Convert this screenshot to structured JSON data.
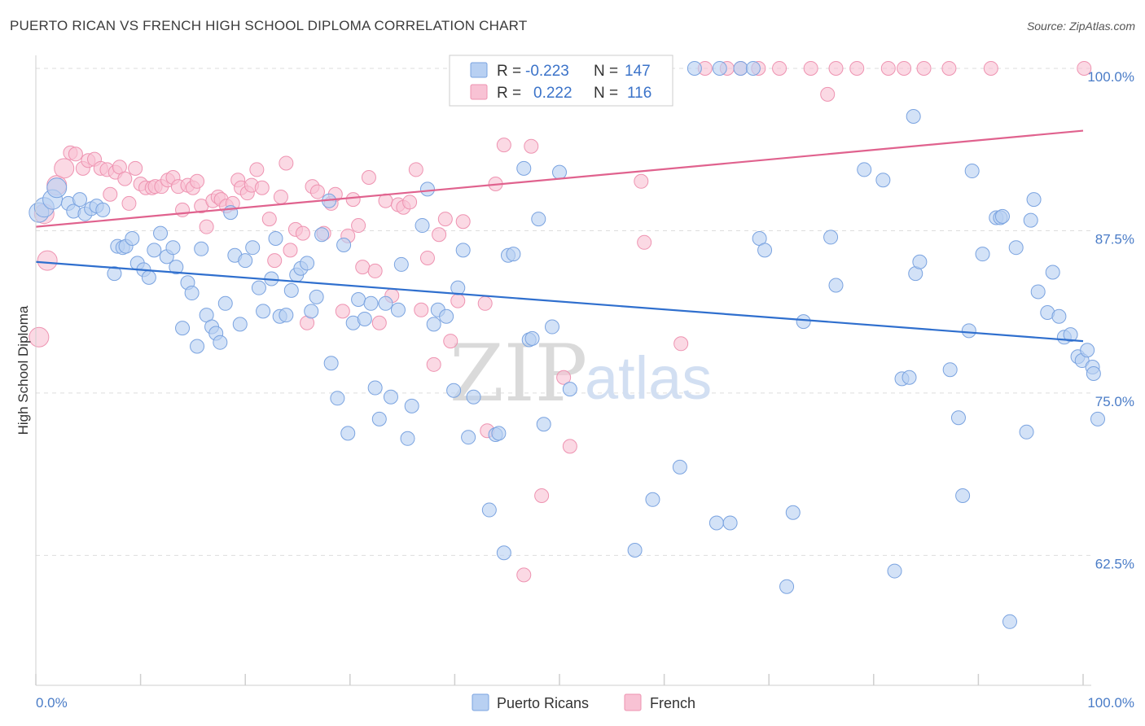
{
  "title": "PUERTO RICAN VS FRENCH HIGH SCHOOL DIPLOMA CORRELATION CHART",
  "source": "Source: ZipAtlas.com",
  "watermark": {
    "part1": "ZIP",
    "part2": "atlas"
  },
  "colors": {
    "series1_fill": "#b8d0f2",
    "series1_stroke": "#7aa3e0",
    "series1_line": "#2f6fce",
    "series2_fill": "#f8c2d4",
    "series2_stroke": "#ee93b1",
    "series2_line": "#e0628e",
    "tick_label": "#4a7cc7",
    "grid": "#dddddd"
  },
  "chart_data": {
    "type": "scatter",
    "title": "PUERTO RICAN VS FRENCH HIGH SCHOOL DIPLOMA CORRELATION CHART",
    "xlabel": "",
    "ylabel": "High School Diploma",
    "xlim": [
      0,
      100
    ],
    "ylim": [
      52.5,
      101
    ],
    "x_tick_labels": [
      "0.0%",
      "100.0%"
    ],
    "y_ticks": [
      62.5,
      75.0,
      87.5,
      100.0
    ],
    "y_tick_labels": [
      "62.5%",
      "75.0%",
      "87.5%",
      "100.0%"
    ],
    "grid": "horizontal dashed",
    "legend_position": "top-center",
    "legend": [
      {
        "r_label": "R =",
        "r_value": "-0.223",
        "n_label": "N =",
        "n_value": "147"
      },
      {
        "r_label": "R =",
        "r_value": "0.222",
        "n_label": "N =",
        "n_value": "116"
      }
    ],
    "series": [
      {
        "name": "Puerto Ricans",
        "trend": {
          "x": [
            0,
            100
          ],
          "y": [
            85.1,
            79.0
          ]
        },
        "points": [
          [
            0.3,
            88.9
          ],
          [
            0.8,
            89.3
          ],
          [
            1.6,
            89.9
          ],
          [
            2.0,
            90.8
          ],
          [
            3.1,
            89.6
          ],
          [
            3.6,
            89.0
          ],
          [
            4.2,
            89.9
          ],
          [
            4.7,
            88.8
          ],
          [
            5.3,
            89.2
          ],
          [
            5.8,
            89.4
          ],
          [
            6.4,
            89.1
          ],
          [
            7.5,
            84.2
          ],
          [
            7.8,
            86.3
          ],
          [
            8.3,
            86.2
          ],
          [
            8.6,
            86.3
          ],
          [
            9.2,
            86.9
          ],
          [
            9.7,
            85.0
          ],
          [
            10.3,
            84.5
          ],
          [
            10.8,
            83.9
          ],
          [
            11.3,
            86.0
          ],
          [
            11.9,
            87.3
          ],
          [
            12.5,
            85.5
          ],
          [
            13.1,
            86.2
          ],
          [
            13.4,
            84.7
          ],
          [
            14.0,
            80.0
          ],
          [
            14.5,
            83.5
          ],
          [
            14.9,
            82.7
          ],
          [
            15.4,
            78.6
          ],
          [
            15.8,
            86.1
          ],
          [
            16.3,
            81.0
          ],
          [
            16.8,
            80.1
          ],
          [
            17.2,
            79.6
          ],
          [
            17.6,
            78.9
          ],
          [
            18.1,
            81.9
          ],
          [
            18.6,
            88.9
          ],
          [
            19.0,
            85.6
          ],
          [
            19.5,
            80.3
          ],
          [
            20.0,
            85.2
          ],
          [
            20.7,
            86.2
          ],
          [
            21.3,
            83.1
          ],
          [
            21.7,
            81.3
          ],
          [
            22.5,
            83.8
          ],
          [
            22.9,
            86.9
          ],
          [
            23.3,
            80.9
          ],
          [
            23.9,
            81.0
          ],
          [
            24.4,
            82.9
          ],
          [
            24.9,
            84.1
          ],
          [
            25.3,
            84.6
          ],
          [
            25.9,
            85.0
          ],
          [
            26.3,
            81.3
          ],
          [
            26.8,
            82.4
          ],
          [
            27.3,
            87.2
          ],
          [
            28.0,
            89.8
          ],
          [
            28.2,
            77.3
          ],
          [
            28.8,
            74.6
          ],
          [
            29.4,
            86.4
          ],
          [
            29.8,
            71.9
          ],
          [
            30.3,
            80.4
          ],
          [
            30.8,
            82.2
          ],
          [
            31.4,
            80.7
          ],
          [
            32.0,
            81.9
          ],
          [
            32.4,
            75.4
          ],
          [
            32.8,
            73.0
          ],
          [
            33.4,
            81.9
          ],
          [
            33.9,
            74.7
          ],
          [
            34.6,
            81.4
          ],
          [
            34.9,
            84.9
          ],
          [
            35.5,
            71.5
          ],
          [
            35.9,
            74.0
          ],
          [
            36.9,
            87.9
          ],
          [
            37.4,
            90.7
          ],
          [
            38.0,
            80.3
          ],
          [
            38.4,
            81.4
          ],
          [
            39.2,
            80.9
          ],
          [
            39.9,
            75.2
          ],
          [
            40.3,
            83.1
          ],
          [
            40.8,
            86.0
          ],
          [
            41.3,
            71.6
          ],
          [
            41.8,
            74.7
          ],
          [
            43.3,
            66.0
          ],
          [
            43.9,
            71.8
          ],
          [
            44.2,
            71.9
          ],
          [
            44.7,
            62.7
          ],
          [
            45.1,
            85.6
          ],
          [
            45.6,
            85.7
          ],
          [
            46.6,
            92.3
          ],
          [
            47.1,
            79.1
          ],
          [
            47.4,
            79.2
          ],
          [
            48.0,
            88.4
          ],
          [
            48.5,
            72.6
          ],
          [
            49.3,
            80.1
          ],
          [
            50.0,
            92.0
          ],
          [
            51.0,
            75.3
          ],
          [
            55.2,
            100.0
          ],
          [
            55.9,
            100.0
          ],
          [
            56.4,
            100.0
          ],
          [
            57.2,
            62.9
          ],
          [
            58.9,
            66.8
          ],
          [
            61.5,
            69.3
          ],
          [
            62.9,
            100.0
          ],
          [
            65.0,
            65.0
          ],
          [
            65.3,
            100.0
          ],
          [
            66.3,
            65.0
          ],
          [
            67.3,
            100.0
          ],
          [
            68.5,
            100.0
          ],
          [
            69.1,
            86.9
          ],
          [
            69.6,
            86.0
          ],
          [
            71.7,
            60.1
          ],
          [
            72.3,
            65.8
          ],
          [
            73.3,
            80.5
          ],
          [
            75.9,
            87.0
          ],
          [
            76.4,
            83.3
          ],
          [
            79.1,
            92.2
          ],
          [
            80.9,
            91.4
          ],
          [
            82.0,
            61.3
          ],
          [
            82.7,
            76.1
          ],
          [
            83.4,
            76.2
          ],
          [
            83.8,
            96.3
          ],
          [
            84.0,
            84.2
          ],
          [
            84.4,
            85.1
          ],
          [
            87.3,
            76.8
          ],
          [
            88.1,
            73.1
          ],
          [
            88.5,
            67.1
          ],
          [
            89.1,
            79.8
          ],
          [
            89.4,
            92.1
          ],
          [
            90.4,
            85.7
          ],
          [
            91.7,
            88.5
          ],
          [
            92.1,
            88.5
          ],
          [
            92.3,
            88.6
          ],
          [
            93.0,
            57.4
          ],
          [
            93.6,
            86.2
          ],
          [
            94.6,
            72.0
          ],
          [
            95.0,
            88.3
          ],
          [
            95.3,
            89.9
          ],
          [
            95.7,
            82.8
          ],
          [
            96.6,
            81.2
          ],
          [
            97.1,
            84.3
          ],
          [
            97.7,
            80.9
          ],
          [
            98.2,
            79.3
          ],
          [
            98.8,
            79.5
          ],
          [
            99.5,
            77.8
          ],
          [
            99.9,
            77.5
          ],
          [
            100.4,
            78.3
          ],
          [
            100.9,
            77.0
          ],
          [
            101.0,
            76.5
          ],
          [
            101.4,
            73.0
          ]
        ]
      },
      {
        "name": "French",
        "trend": {
          "x": [
            0,
            100
          ],
          "y": [
            87.8,
            95.2
          ]
        },
        "points": [
          [
            0.3,
            79.3
          ],
          [
            0.8,
            88.8
          ],
          [
            1.1,
            85.2
          ],
          [
            2.0,
            91.0
          ],
          [
            2.7,
            92.3
          ],
          [
            3.3,
            93.5
          ],
          [
            3.8,
            93.4
          ],
          [
            4.5,
            92.3
          ],
          [
            5.0,
            92.9
          ],
          [
            5.6,
            93.0
          ],
          [
            6.2,
            92.3
          ],
          [
            6.8,
            92.2
          ],
          [
            7.1,
            90.3
          ],
          [
            7.6,
            92.0
          ],
          [
            8.0,
            92.4
          ],
          [
            8.5,
            91.5
          ],
          [
            8.9,
            89.6
          ],
          [
            9.5,
            92.3
          ],
          [
            10.0,
            91.1
          ],
          [
            10.5,
            90.8
          ],
          [
            11.1,
            90.8
          ],
          [
            11.4,
            90.9
          ],
          [
            12.0,
            90.9
          ],
          [
            12.6,
            91.4
          ],
          [
            13.1,
            91.6
          ],
          [
            13.6,
            90.9
          ],
          [
            14.0,
            89.1
          ],
          [
            14.5,
            91.0
          ],
          [
            15.0,
            90.8
          ],
          [
            15.4,
            91.3
          ],
          [
            15.8,
            89.4
          ],
          [
            16.3,
            87.8
          ],
          [
            16.9,
            89.8
          ],
          [
            17.4,
            90.1
          ],
          [
            17.7,
            89.9
          ],
          [
            18.2,
            89.4
          ],
          [
            18.8,
            89.6
          ],
          [
            19.3,
            91.4
          ],
          [
            19.6,
            90.8
          ],
          [
            20.2,
            90.4
          ],
          [
            20.6,
            91.0
          ],
          [
            21.1,
            92.2
          ],
          [
            21.6,
            90.8
          ],
          [
            22.3,
            88.4
          ],
          [
            22.8,
            85.2
          ],
          [
            23.4,
            90.1
          ],
          [
            23.9,
            92.7
          ],
          [
            24.3,
            86.0
          ],
          [
            24.8,
            87.6
          ],
          [
            25.5,
            87.3
          ],
          [
            25.9,
            80.4
          ],
          [
            26.4,
            90.9
          ],
          [
            26.9,
            90.5
          ],
          [
            27.5,
            87.3
          ],
          [
            28.2,
            89.6
          ],
          [
            28.6,
            90.3
          ],
          [
            29.3,
            81.3
          ],
          [
            29.8,
            87.1
          ],
          [
            30.3,
            89.9
          ],
          [
            30.8,
            87.9
          ],
          [
            31.2,
            84.7
          ],
          [
            31.8,
            91.6
          ],
          [
            32.4,
            84.4
          ],
          [
            32.8,
            80.4
          ],
          [
            33.4,
            89.8
          ],
          [
            34.0,
            82.5
          ],
          [
            34.6,
            89.5
          ],
          [
            35.1,
            89.3
          ],
          [
            35.7,
            89.7
          ],
          [
            36.3,
            92.2
          ],
          [
            36.8,
            81.4
          ],
          [
            37.4,
            85.4
          ],
          [
            38.0,
            77.2
          ],
          [
            38.5,
            87.2
          ],
          [
            39.1,
            88.4
          ],
          [
            39.6,
            79.0
          ],
          [
            40.3,
            82.1
          ],
          [
            40.8,
            88.2
          ],
          [
            42.0,
            100.0
          ],
          [
            42.5,
            100.0
          ],
          [
            42.9,
            81.9
          ],
          [
            43.1,
            72.1
          ],
          [
            43.5,
            100.0
          ],
          [
            43.9,
            91.1
          ],
          [
            44.3,
            100.0
          ],
          [
            44.7,
            94.1
          ],
          [
            45.3,
            100.0
          ],
          [
            46.4,
            100.0
          ],
          [
            46.6,
            61.0
          ],
          [
            46.9,
            100.0
          ],
          [
            47.3,
            94.0
          ],
          [
            48.3,
            67.1
          ],
          [
            49.0,
            100.0
          ],
          [
            49.5,
            100.0
          ],
          [
            50.4,
            76.2
          ],
          [
            51.0,
            70.9
          ],
          [
            51.7,
            100.0
          ],
          [
            55.0,
            100.0
          ],
          [
            56.5,
            100.0
          ],
          [
            57.8,
            91.3
          ],
          [
            58.1,
            86.6
          ],
          [
            60.1,
            100.0
          ],
          [
            61.6,
            78.8
          ],
          [
            63.9,
            100.0
          ],
          [
            66.0,
            100.0
          ],
          [
            67.3,
            100.0
          ],
          [
            69.0,
            100.0
          ],
          [
            71.0,
            100.0
          ],
          [
            74.0,
            100.0
          ],
          [
            75.6,
            98.0
          ],
          [
            76.4,
            100.0
          ],
          [
            78.4,
            100.0
          ],
          [
            81.4,
            100.0
          ],
          [
            82.9,
            100.0
          ],
          [
            84.8,
            100.0
          ],
          [
            87.2,
            100.0
          ],
          [
            91.2,
            100.0
          ],
          [
            100.1,
            100.0
          ]
        ]
      }
    ]
  },
  "bottom_legend": [
    "Puerto Ricans",
    "French"
  ]
}
